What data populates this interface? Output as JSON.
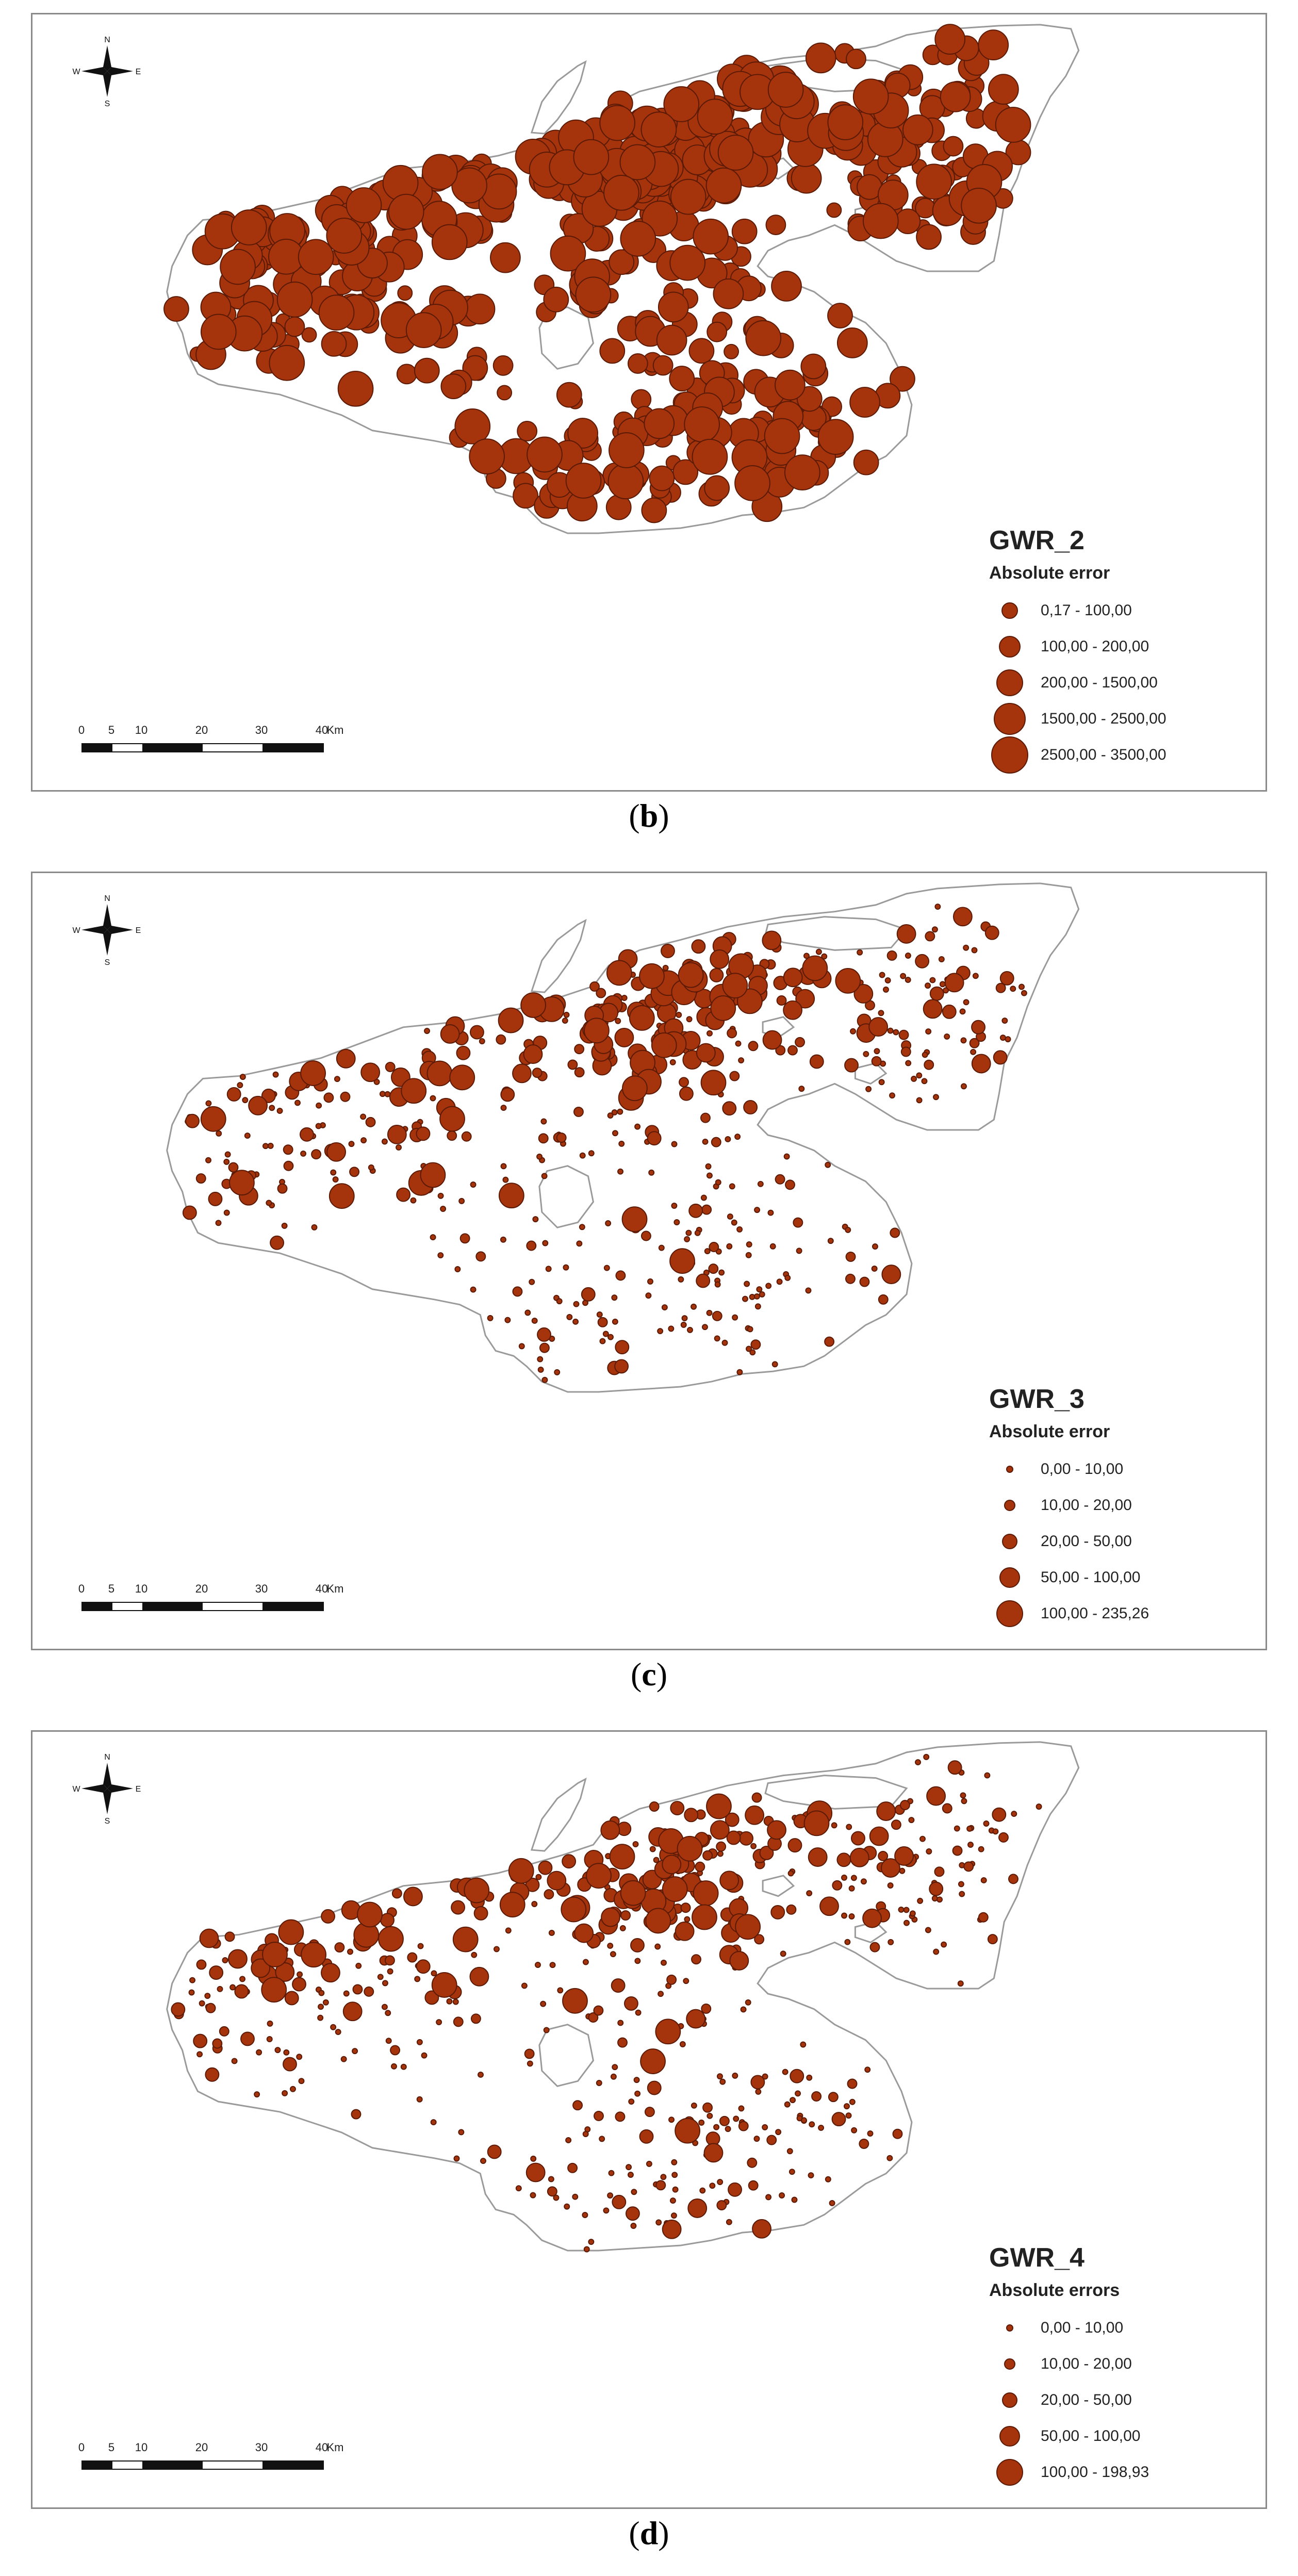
{
  "panels": [
    {
      "id": "b",
      "caption_open": "(",
      "caption_letter": "b",
      "caption_close": ")",
      "legend_title": "GWR_2",
      "legend_subtitle": "Absolute error",
      "classes": [
        "0,17 - 100,00",
        "100,00 - 200,00",
        "200,00 - 1500,00",
        "1500,00 - 2500,00",
        "2500,00 - 3500,00"
      ],
      "class_radii": [
        14,
        19,
        24,
        29,
        34
      ],
      "weights": [
        0.1,
        0.25,
        0.35,
        0.2,
        0.1
      ],
      "hotspot_weights": [
        0.0,
        0.05,
        0.25,
        0.35,
        0.35
      ],
      "seed": 11
    },
    {
      "id": "c",
      "caption_open": "(",
      "caption_letter": "c",
      "caption_close": ")",
      "legend_title": "GWR_3",
      "legend_subtitle": "Absolute error",
      "classes": [
        "0,00 - 10,00",
        "10,00 - 20,00",
        "20,00 - 50,00",
        "50,00 - 100,00",
        "100,00 - 235,26"
      ],
      "class_radii": [
        5,
        9,
        13,
        18,
        24
      ],
      "weights": [
        0.7,
        0.18,
        0.07,
        0.03,
        0.02
      ],
      "hotspot_weights": [
        0.15,
        0.2,
        0.25,
        0.25,
        0.15
      ],
      "seed": 23
    },
    {
      "id": "d",
      "caption_open": "(",
      "caption_letter": "d",
      "caption_close": ")",
      "legend_title": "GWR_4",
      "legend_subtitle": "Absolute errors",
      "classes": [
        "0,00 - 10,00",
        "10,00 - 20,00",
        "20,00 - 50,00",
        "50,00 - 100,00",
        "100,00 - 198,93"
      ],
      "class_radii": [
        5,
        9,
        13,
        18,
        24
      ],
      "weights": [
        0.68,
        0.18,
        0.08,
        0.04,
        0.02
      ],
      "hotspot_weights": [
        0.15,
        0.2,
        0.25,
        0.25,
        0.15
      ],
      "seed": 37
    }
  ],
  "compass": {
    "n": "N",
    "s": "S",
    "e": "E",
    "w": "W"
  },
  "scale": {
    "ticks": [
      "0",
      "5",
      "10",
      "20",
      "30",
      "40"
    ],
    "unit": "Km"
  },
  "colors": {
    "symbol_fill": "#a5330c",
    "symbol_stroke": "#5a1a06",
    "outline": "#9a9a9a",
    "frame": "#8a8a8a"
  }
}
